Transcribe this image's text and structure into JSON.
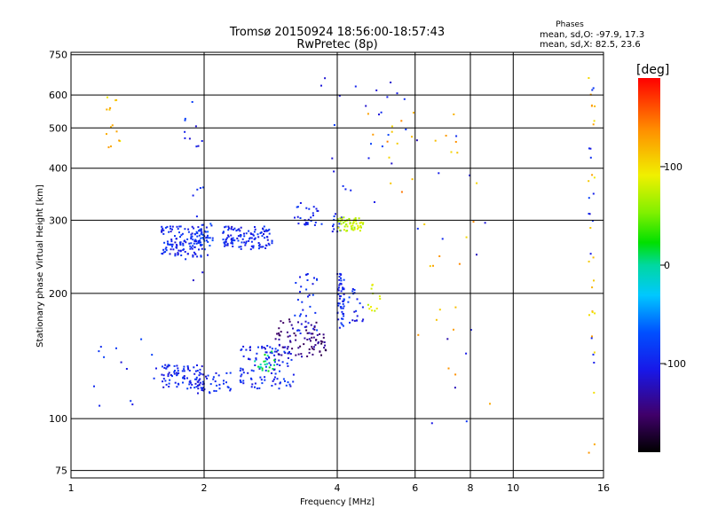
{
  "header": {
    "title_line1": "Tromsø 20150924 18:56:00-18:57:43",
    "title_line2": "RwPretec (8p)",
    "stats_title": "Phases",
    "stats_line1": "mean, sd,O: -97.9, 17.3",
    "stats_line2": "mean, sd,X:  82.5, 23.6"
  },
  "colorbar": {
    "label": "[deg]",
    "tick_labels": [
      "100",
      "0",
      "-100"
    ],
    "tick_values": [
      100,
      0,
      -100
    ],
    "range": [
      -190,
      190
    ]
  },
  "chart_data": {
    "type": "scatter",
    "title": "",
    "xlabel": "Frequency [MHz]",
    "ylabel": "Stationary phase Virtual Height [km]",
    "xscale": "log",
    "yscale": "log",
    "xlim": [
      1,
      16
    ],
    "ylim": [
      72,
      760
    ],
    "x_ticks": [
      1,
      2,
      4,
      6,
      8,
      10,
      16
    ],
    "x_tick_labels": [
      "1",
      "2",
      "4",
      "6",
      "8",
      "10",
      "16"
    ],
    "y_ticks": [
      75,
      100,
      200,
      300,
      400,
      500,
      600,
      750
    ],
    "y_tick_labels": [
      "75",
      "100",
      "200",
      "300",
      "400",
      "500",
      "600",
      "750"
    ],
    "grid": true,
    "color_encoding": "phase [deg]",
    "clusters": [
      {
        "x": [
          1.6,
          2.05
        ],
        "y": [
          245,
          290
        ],
        "phase": -100,
        "count": 140
      },
      {
        "x": [
          2.2,
          2.85
        ],
        "y": [
          255,
          290
        ],
        "phase": -100,
        "count": 120
      },
      {
        "x": [
          1.9,
          2.1
        ],
        "y": [
          260,
          295
        ],
        "phase": -80,
        "count": 25
      },
      {
        "x": [
          3.2,
          3.7
        ],
        "y": [
          290,
          330
        ],
        "phase": -100,
        "count": 30
      },
      {
        "x": [
          3.9,
          4.1
        ],
        "y": [
          280,
          315
        ],
        "phase": -100,
        "count": 12
      },
      {
        "x": [
          4.0,
          4.6
        ],
        "y": [
          282,
          305
        ],
        "phase": 80,
        "count": 55
      },
      {
        "x": [
          4.0,
          4.15
        ],
        "y": [
          165,
          225
        ],
        "phase": -100,
        "count": 55
      },
      {
        "x": [
          4.2,
          4.6
        ],
        "y": [
          170,
          205
        ],
        "phase": -100,
        "count": 20
      },
      {
        "x": [
          4.7,
          5.0
        ],
        "y": [
          180,
          210
        ],
        "phase": 90,
        "count": 12
      },
      {
        "x": [
          3.2,
          3.6
        ],
        "y": [
          160,
          225
        ],
        "phase": -100,
        "count": 35
      },
      {
        "x": [
          1.6,
          2.0
        ],
        "y": [
          118,
          135
        ],
        "phase": -100,
        "count": 80
      },
      {
        "x": [
          1.9,
          2.3
        ],
        "y": [
          115,
          130
        ],
        "phase": -100,
        "count": 45
      },
      {
        "x": [
          2.4,
          3.2
        ],
        "y": [
          118,
          150
        ],
        "phase": -100,
        "count": 110
      },
      {
        "x": [
          2.6,
          2.9
        ],
        "y": [
          130,
          145
        ],
        "phase": 10,
        "count": 20
      },
      {
        "x": [
          2.9,
          3.6
        ],
        "y": [
          140,
          175
        ],
        "phase": -140,
        "count": 60
      },
      {
        "x": [
          3.5,
          3.8
        ],
        "y": [
          140,
          160
        ],
        "phase": -150,
        "count": 25
      },
      {
        "x": [
          1.1,
          1.6
        ],
        "y": [
          105,
          165
        ],
        "phase": -100,
        "count": 14
      },
      {
        "x": [
          1.2,
          1.3
        ],
        "y": [
          440,
          610
        ],
        "phase": 120,
        "count": 14
      },
      {
        "x": [
          1.8,
          2.0
        ],
        "y": [
          210,
          600
        ],
        "phase": -100,
        "count": 20
      },
      {
        "x": [
          3.5,
          5.8
        ],
        "y": [
          330,
          660
        ],
        "phase": -100,
        "count": 25
      },
      {
        "x": [
          4.6,
          7.5
        ],
        "y": [
          350,
          640
        ],
        "phase": 130,
        "count": 15
      },
      {
        "x": [
          14.8,
          15.3
        ],
        "y": [
          78,
          660
        ],
        "phase": 120,
        "count": 24
      },
      {
        "x": [
          14.8,
          15.3
        ],
        "y": [
          130,
          660
        ],
        "phase": -100,
        "count": 14
      },
      {
        "x": [
          6.0,
          9.0
        ],
        "y": [
          90,
          480
        ],
        "phase": 130,
        "count": 20
      },
      {
        "x": [
          6.0,
          9.0
        ],
        "y": [
          90,
          480
        ],
        "phase": -110,
        "count": 14
      }
    ]
  }
}
